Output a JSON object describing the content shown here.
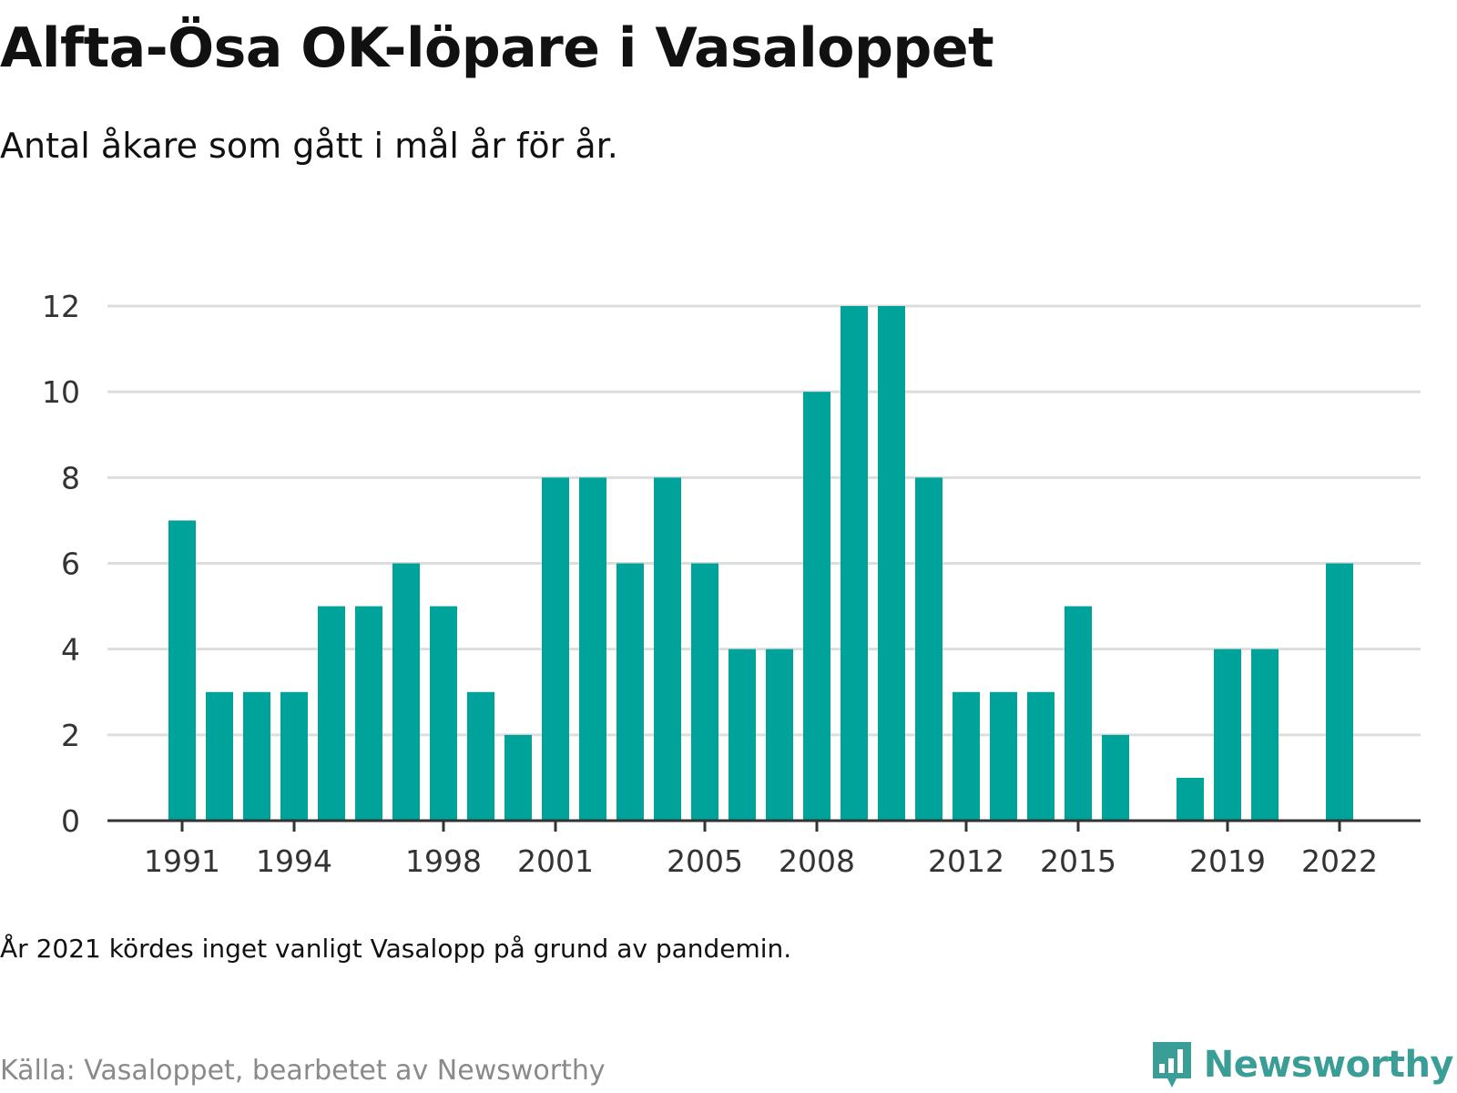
{
  "title": "Alfta-Ösa OK-löpare i Vasaloppet",
  "subtitle": "Antal åkare som gått i mål år för år.",
  "note": "År 2021 kördes inget vanligt Vasalopp på grund av pandemin.",
  "source": "Källa: Vasaloppet, bearbetet av Newsworthy",
  "logo": {
    "text": "Newsworthy",
    "icon": "bar-chart-speech-bubble-icon"
  },
  "colors": {
    "bar": "#00a39a",
    "grid": "#dddddd",
    "axis": "#333333",
    "logo": "#3a9e97"
  },
  "chart_data": {
    "type": "bar",
    "title": "",
    "xlabel": "",
    "ylabel": "",
    "ylim": [
      0,
      12
    ],
    "yticks": [
      0,
      2,
      4,
      6,
      8,
      10,
      12
    ],
    "xticks": [
      1991,
      1994,
      1998,
      2001,
      2005,
      2008,
      2012,
      2015,
      2019,
      2022
    ],
    "grid": true,
    "categories": [
      1991,
      1992,
      1993,
      1994,
      1995,
      1996,
      1997,
      1998,
      1999,
      2000,
      2001,
      2002,
      2003,
      2004,
      2005,
      2006,
      2007,
      2008,
      2009,
      2010,
      2011,
      2012,
      2013,
      2014,
      2015,
      2016,
      2017,
      2018,
      2019,
      2020,
      2021,
      2022
    ],
    "values": [
      7,
      3,
      3,
      3,
      5,
      5,
      6,
      5,
      3,
      2,
      8,
      8,
      6,
      8,
      6,
      4,
      4,
      10,
      12,
      12,
      8,
      3,
      3,
      3,
      5,
      2,
      0,
      1,
      4,
      4,
      0,
      6
    ]
  }
}
